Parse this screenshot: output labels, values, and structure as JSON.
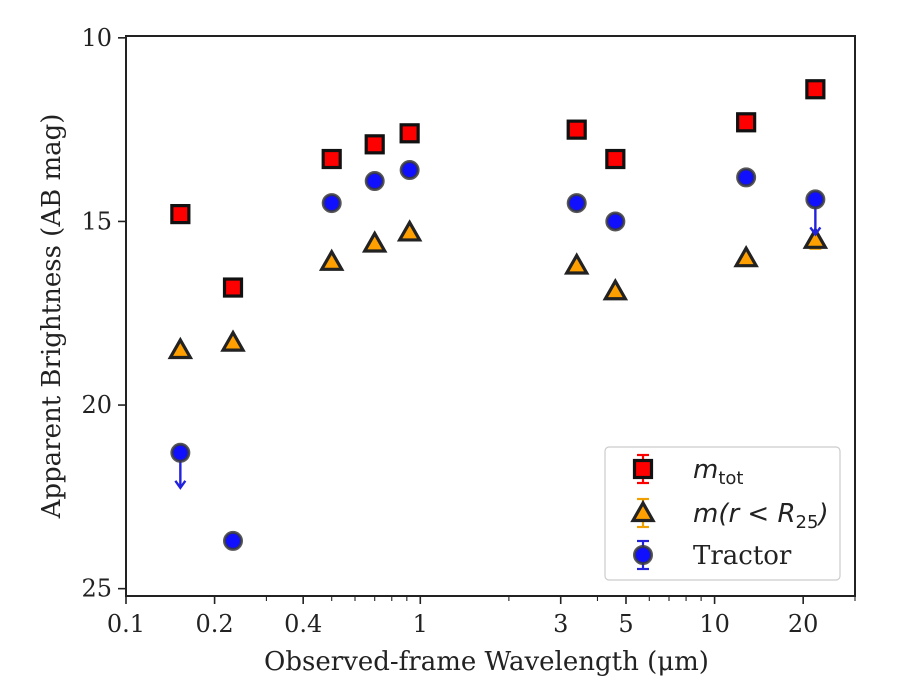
{
  "chart_data": {
    "type": "scatter",
    "title": "",
    "xlabel": "Observed-frame Wavelength (μm)",
    "ylabel": "Apparent Brightness (AB mag)",
    "xscale": "log",
    "xlim": [
      0.1,
      30
    ],
    "ylim": [
      25.2,
      9.95
    ],
    "y_inverted": true,
    "x_ticks": [
      0.1,
      0.2,
      0.4,
      1,
      3,
      5,
      10,
      20
    ],
    "x_tick_labels": [
      "0.1",
      "0.2",
      "0.4",
      "1",
      "3",
      "5",
      "10",
      "20"
    ],
    "y_ticks": [
      10,
      15,
      20,
      25
    ],
    "y_tick_labels": [
      "10",
      "15",
      "20",
      "25"
    ],
    "legend_position": "lower-right",
    "series": [
      {
        "name": "m_tot",
        "legend_label": {
          "main": "m",
          "sub": "tot"
        },
        "marker": "square",
        "color": "#ff0000",
        "edge": "#111111",
        "x": [
          0.153,
          0.231,
          0.5,
          0.7,
          0.92,
          3.4,
          4.6,
          12.8,
          22.0
        ],
        "y": [
          14.8,
          16.8,
          13.3,
          12.9,
          12.6,
          12.5,
          13.3,
          12.3,
          11.4
        ]
      },
      {
        "name": "m(r<R_25)",
        "legend_label": {
          "main": "m(r < R",
          "sub": "25",
          "end": ")"
        },
        "marker": "triangle",
        "color": "#ff9f00",
        "edge": "#222222",
        "x": [
          0.153,
          0.231,
          0.5,
          0.7,
          0.92,
          3.4,
          4.6,
          12.8,
          22.0
        ],
        "y": [
          18.5,
          18.3,
          16.1,
          15.6,
          15.3,
          16.2,
          16.9,
          16.0,
          15.5
        ]
      },
      {
        "name": "Tractor",
        "legend_label": {
          "main": "Tractor"
        },
        "marker": "circle",
        "color": "#1010ff",
        "edge": "#3a3a3a",
        "x": [
          0.153,
          0.231,
          0.5,
          0.7,
          0.92,
          3.4,
          4.6,
          12.8,
          22.0
        ],
        "y": [
          21.3,
          23.7,
          14.5,
          13.9,
          13.6,
          14.5,
          15.0,
          13.8,
          14.4
        ],
        "upper_limits": [
          true,
          false,
          false,
          false,
          false,
          false,
          false,
          false,
          true
        ]
      }
    ],
    "colors": {
      "errorbar_red": "#ff0000",
      "errorbar_orange": "#f0a000",
      "arrow_blue": "#2222dd",
      "axis": "#222222"
    }
  }
}
